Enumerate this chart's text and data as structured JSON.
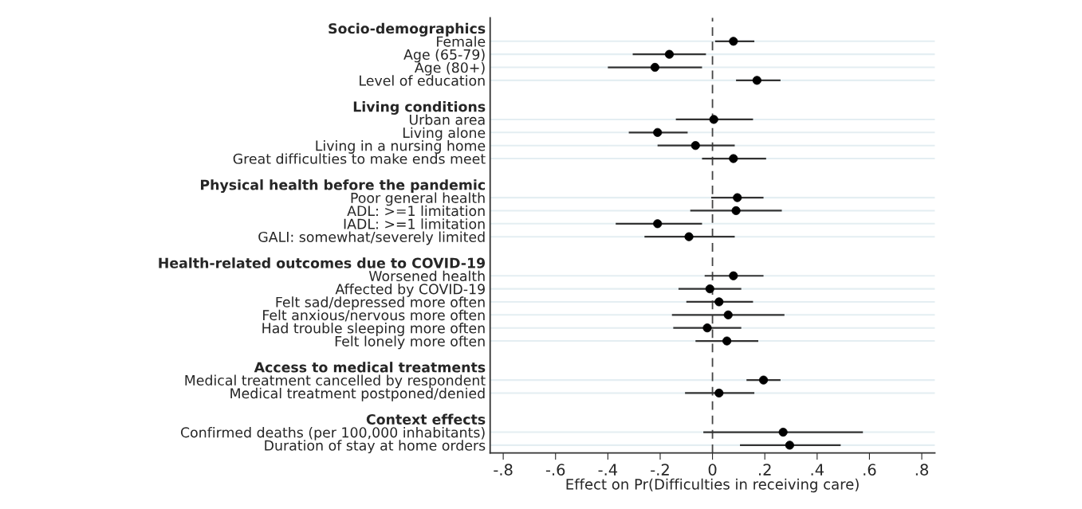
{
  "chart_data": {
    "type": "scatter",
    "orientation": "horizontal",
    "xlabel": "Effect on Pr(Difficulties in receiving care)",
    "categories": [
      "Socio-demographics",
      "Female",
      "Age (65-79)",
      "Age (80+)",
      "Level of education",
      null,
      "Living conditions",
      "Urban area",
      "Living alone",
      "Living in a nursing home",
      "Great difficulties to make ends meet",
      null,
      "Physical health before the pandemic",
      "Poor general health",
      "ADL: >=1 limitation",
      "IADL: >=1 limitation",
      "GALI: somewhat/severely limited",
      null,
      "Health-related outcomes due to COVID-19",
      "Worsened health",
      "Affected by COVID-19",
      "Felt sad/depressed more often",
      "Felt anxious/nervous more often",
      "Had trouble sleeping more often",
      "Felt lonely more often",
      null,
      "Access to medical treatments",
      "Medical treatment cancelled by respondent",
      "Medical treatment postponed/denied",
      null,
      "Context effects",
      "Confirmed deaths (per 100,000 inhabitants)",
      "Duration of stay at home orders"
    ],
    "series": [
      {
        "color": "#000000",
        "values": [
          null,
          0.08,
          -0.165,
          -0.22,
          0.17,
          null,
          null,
          0.005,
          -0.21,
          -0.065,
          0.08,
          null,
          null,
          0.095,
          0.09,
          -0.21,
          -0.09,
          null,
          null,
          0.08,
          -0.01,
          0.025,
          0.06,
          -0.02,
          0.055,
          null,
          null,
          0.195,
          0.025,
          null,
          null,
          0.27,
          0.295
        ],
        "errors": [
          null,
          [
            0.01,
            0.16
          ],
          [
            -0.305,
            -0.025
          ],
          [
            -0.4,
            -0.04
          ],
          [
            0.09,
            0.26
          ],
          null,
          null,
          [
            -0.14,
            0.155
          ],
          [
            -0.32,
            -0.095
          ],
          [
            -0.21,
            0.085
          ],
          [
            -0.04,
            0.205
          ],
          null,
          null,
          [
            -0.005,
            0.195
          ],
          [
            -0.085,
            0.265
          ],
          [
            -0.37,
            -0.04
          ],
          [
            -0.26,
            0.085
          ],
          null,
          null,
          [
            -0.03,
            0.195
          ],
          [
            -0.13,
            0.11
          ],
          [
            -0.1,
            0.155
          ],
          [
            -0.155,
            0.275
          ],
          [
            -0.15,
            0.11
          ],
          [
            -0.065,
            0.175
          ],
          null,
          null,
          [
            0.13,
            0.26
          ],
          [
            -0.105,
            0.16
          ],
          null,
          null,
          [
            -0.035,
            0.575
          ],
          [
            0.105,
            0.49
          ]
        ]
      }
    ],
    "xlim": [
      -0.85,
      0.85
    ],
    "xticks": [
      {
        "value": -0.8,
        "label": "-.8"
      },
      {
        "value": -0.6,
        "label": "-.6"
      },
      {
        "value": -0.4,
        "label": "-.4"
      },
      {
        "value": -0.2,
        "label": "-.2"
      },
      0,
      {
        "value": 0.2,
        "label": ".2"
      },
      {
        "value": 0.4,
        "label": ".4"
      },
      {
        "value": 0.6,
        "label": ".6"
      },
      {
        "value": 0.8,
        "label": ".8"
      }
    ],
    "ref_lines": [
      {
        "axis": "x",
        "value": 0,
        "color": "#444444",
        "line_style": "dashed"
      }
    ],
    "grid": "y",
    "marker": "circle",
    "legend": false
  }
}
